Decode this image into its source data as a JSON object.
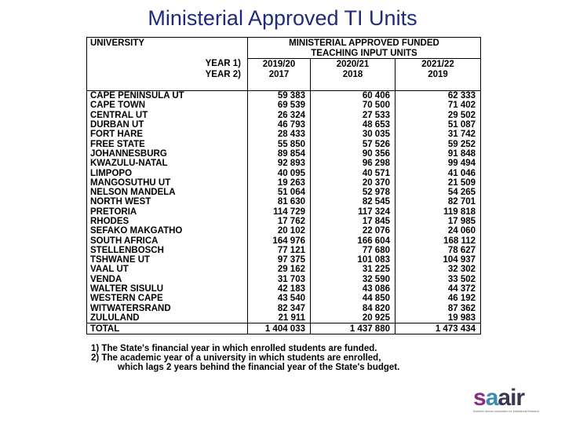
{
  "title": "Ministerial Approved TI Units",
  "header": {
    "university_label": "UNIVERSITY",
    "funded_line1": "MINISTERIAL APPROVED FUNDED",
    "funded_line2": "TEACHING INPUT UNITS",
    "year1_label": "YEAR 1)",
    "year2_label": "YEAR 2)",
    "fin_years": [
      "2019/20",
      "2020/21",
      "2021/22"
    ],
    "acad_years": [
      "2017",
      "2018",
      "2019"
    ]
  },
  "rows": [
    {
      "name": "CAPE PENINSULA UT",
      "v": [
        "59 383",
        "60 406",
        "62 333"
      ]
    },
    {
      "name": "CAPE TOWN",
      "v": [
        "69 539",
        "70 500",
        "71 402"
      ]
    },
    {
      "name": "CENTRAL UT",
      "v": [
        "26 324",
        "27 533",
        "29 502"
      ]
    },
    {
      "name": "DURBAN UT",
      "v": [
        "46 793",
        "48 653",
        "51 087"
      ]
    },
    {
      "name": "FORT HARE",
      "v": [
        "28 433",
        "30 035",
        "31 742"
      ]
    },
    {
      "name": "FREE STATE",
      "v": [
        "55 850",
        "57 526",
        "59 252"
      ]
    },
    {
      "name": "JOHANNESBURG",
      "v": [
        "89 854",
        "90 356",
        "91 848"
      ]
    },
    {
      "name": "KWAZULU-NATAL",
      "v": [
        "92 893",
        "96 298",
        "99 494"
      ]
    },
    {
      "name": "LIMPOPO",
      "v": [
        "40 095",
        "40 571",
        "41 046"
      ]
    },
    {
      "name": "MANGOSUTHU UT",
      "v": [
        "19 263",
        "20 370",
        "21 509"
      ]
    },
    {
      "name": "NELSON MANDELA",
      "v": [
        "51 064",
        "52 978",
        "54 265"
      ]
    },
    {
      "name": "NORTH WEST",
      "v": [
        "81 630",
        "82 545",
        "82 701"
      ]
    },
    {
      "name": "PRETORIA",
      "v": [
        "114 729",
        "117 324",
        "119 818"
      ]
    },
    {
      "name": "RHODES",
      "v": [
        "17 762",
        "17 845",
        "17 985"
      ]
    },
    {
      "name": "SEFAKO MAKGATHO",
      "v": [
        "20 102",
        "22 076",
        "24 060"
      ]
    },
    {
      "name": "SOUTH AFRICA",
      "v": [
        "164 976",
        "166 604",
        "168 112"
      ]
    },
    {
      "name": "STELLENBOSCH",
      "v": [
        "77 121",
        "77 680",
        "78 627"
      ]
    },
    {
      "name": "TSHWANE UT",
      "v": [
        "97 375",
        "101 083",
        "104 937"
      ]
    },
    {
      "name": "VAAL UT",
      "v": [
        "29 162",
        "31 225",
        "32 302"
      ]
    },
    {
      "name": "VENDA",
      "v": [
        "31 703",
        "32 590",
        "33 502"
      ]
    },
    {
      "name": "WALTER SISULU",
      "v": [
        "42 183",
        "43 086",
        "44 372"
      ]
    },
    {
      "name": "WESTERN CAPE",
      "v": [
        "43 540",
        "44 850",
        "46 192"
      ]
    },
    {
      "name": "WITWATERSRAND",
      "v": [
        "82 347",
        "84 820",
        "87 362"
      ]
    },
    {
      "name": "ZULULAND",
      "v": [
        "21 911",
        "20 925",
        "19 983"
      ]
    }
  ],
  "total": {
    "label": "TOTAL",
    "v": [
      "1 404 033",
      "1 437 880",
      "1 473 434"
    ]
  },
  "footnotes": {
    "note1": "1)  The State's financial year in which enrolled students are funded.",
    "note2a": "2)  The academic year of a university in which students are enrolled,",
    "note2b": "which lags 2 years behind the financial year of the State's budget."
  },
  "logo": {
    "word_s": "s",
    "word_a1": "a",
    "word_a2": "a",
    "word_ir": "ir",
    "tagline": "Southern African Association for Institutional Research",
    "colors": {
      "purple": "#8b2b83",
      "blue": "#3b8cb1",
      "dark": "#3a3550"
    }
  }
}
